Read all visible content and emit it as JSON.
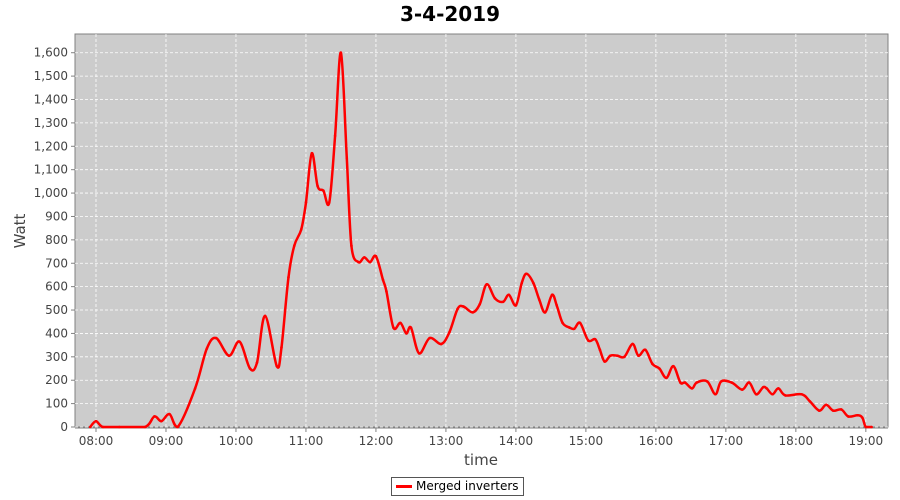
{
  "chart_data": {
    "type": "line",
    "title": "3-4-2019",
    "xlabel": "time",
    "ylabel": "Watt",
    "xlim": [
      "07:42",
      "19:19"
    ],
    "ylim": [
      0,
      1680
    ],
    "grid": true,
    "legend_position": "bottom",
    "background": "#cccccc",
    "x_ticks": [
      "08:00",
      "09:00",
      "10:00",
      "11:00",
      "12:00",
      "13:00",
      "14:00",
      "15:00",
      "16:00",
      "17:00",
      "18:00",
      "19:00"
    ],
    "y_ticks": [
      0,
      100,
      200,
      300,
      400,
      500,
      600,
      700,
      800,
      900,
      1000,
      1100,
      1200,
      1300,
      1400,
      1500,
      1600
    ],
    "y_tick_labels": [
      "0",
      "100",
      "200",
      "300",
      "400",
      "500",
      "600",
      "700",
      "800",
      "900",
      "1,000",
      "1,100",
      "1,200",
      "1,300",
      "1,400",
      "1,500",
      "1,600"
    ],
    "series": [
      {
        "name": "Merged inverters",
        "color": "#ff0000",
        "x": [
          "07:55",
          "08:00",
          "08:06",
          "08:20",
          "08:42",
          "08:50",
          "08:56",
          "09:03",
          "09:10",
          "09:25",
          "09:35",
          "09:43",
          "09:54",
          "10:03",
          "10:12",
          "10:18",
          "10:25",
          "10:35",
          "10:39",
          "10:45",
          "10:50",
          "10:56",
          "11:00",
          "11:05",
          "11:10",
          "11:15",
          "11:20",
          "11:25",
          "11:30",
          "11:35",
          "11:39",
          "11:45",
          "11:50",
          "11:55",
          "12:00",
          "12:06",
          "12:09",
          "12:15",
          "12:21",
          "12:26",
          "12:30",
          "12:37",
          "12:46",
          "12:56",
          "13:03",
          "13:10",
          "13:15",
          "13:23",
          "13:29",
          "13:35",
          "13:42",
          "13:49",
          "13:54",
          "14:00",
          "14:05",
          "14:09",
          "14:15",
          "14:20",
          "14:25",
          "14:31",
          "14:35",
          "14:40",
          "14:46",
          "14:50",
          "14:55",
          "15:02",
          "15:08",
          "15:12",
          "15:16",
          "15:21",
          "15:27",
          "15:33",
          "15:40",
          "15:45",
          "15:51",
          "15:57",
          "16:03",
          "16:09",
          "16:15",
          "16:21",
          "16:25",
          "16:31",
          "16:35",
          "16:44",
          "16:51",
          "16:56",
          "17:05",
          "17:14",
          "17:20",
          "17:26",
          "17:32",
          "17:35",
          "17:40",
          "17:45",
          "17:51",
          "18:05",
          "18:12",
          "18:20",
          "18:26",
          "18:32",
          "18:39",
          "18:45",
          "18:53",
          "18:57",
          "19:00",
          "19:05"
        ],
        "y": [
          0,
          25,
          0,
          0,
          0,
          45,
          25,
          55,
          0,
          165,
          335,
          380,
          305,
          365,
          250,
          275,
          475,
          260,
          340,
          640,
          775,
          845,
          960,
          1170,
          1030,
          1010,
          960,
          1245,
          1600,
          1150,
          775,
          705,
          725,
          705,
          730,
          630,
          580,
          425,
          445,
          400,
          425,
          315,
          380,
          355,
          405,
          505,
          515,
          490,
          525,
          610,
          550,
          535,
          565,
          520,
          615,
          655,
          615,
          545,
          490,
          565,
          520,
          445,
          425,
          420,
          445,
          370,
          375,
          330,
          280,
          305,
          305,
          300,
          355,
          305,
          330,
          270,
          250,
          210,
          260,
          190,
          190,
          165,
          190,
          195,
          140,
          195,
          190,
          160,
          190,
          140,
          170,
          165,
          140,
          165,
          135,
          140,
          110,
          70,
          95,
          70,
          75,
          45,
          50,
          40,
          0,
          0
        ]
      }
    ]
  }
}
